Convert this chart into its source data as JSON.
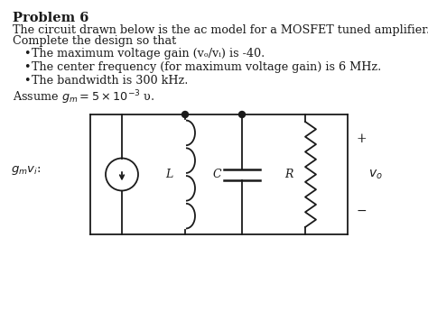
{
  "title": "Problem 6",
  "body_line1": "The circuit drawn below is the ac model for a MOSFET tuned amplifier.",
  "body_line2": "Complete the design so that",
  "bullet1": "The maximum voltage gain (vₒ/vᵢ) is -40.",
  "bullet2": "The center frequency (for maximum voltage gain) is 6 MHz.",
  "bullet3": "The bandwidth is 300 kHz.",
  "assume_text": "Assume $g_m = 5 \\times 10^{-3}$ υ.",
  "background_color": "#ffffff",
  "text_color": "#1a1a1a",
  "circuit_color": "#1a1a1a",
  "font_size_title": 10.5,
  "font_size_body": 9.2,
  "lw": 1.3
}
